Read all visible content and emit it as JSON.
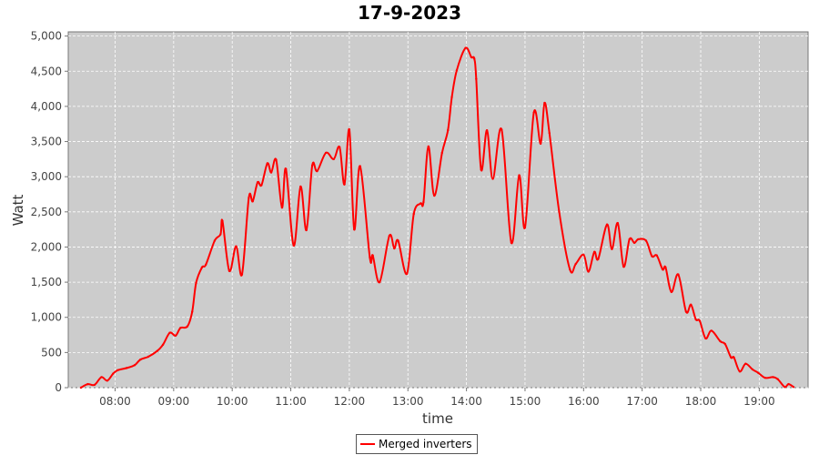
{
  "chart_data": {
    "type": "line",
    "title": "17-9-2023",
    "xlabel": "time",
    "ylabel": "Watt",
    "xlim": [
      "07:12",
      "19:50"
    ],
    "ylim": [
      0,
      5060
    ],
    "x_ticks": [
      "08:00",
      "09:00",
      "10:00",
      "11:00",
      "12:00",
      "13:00",
      "14:00",
      "15:00",
      "16:00",
      "17:00",
      "18:00",
      "19:00"
    ],
    "y_ticks": [
      "0",
      "500",
      "1,000",
      "1,500",
      "2,000",
      "2,500",
      "3,000",
      "3,500",
      "4,000",
      "4,500",
      "5,000"
    ],
    "grid": true,
    "background": "#cccccc",
    "legend_position": "bottom",
    "series": [
      {
        "name": "Merged inverters",
        "color": "#ff0000",
        "x": [
          "07:25",
          "07:32",
          "07:39",
          "07:46",
          "07:52",
          "07:58",
          "08:03",
          "08:12",
          "08:20",
          "08:26",
          "08:34",
          "08:43",
          "08:49",
          "08:56",
          "09:02",
          "09:07",
          "09:14",
          "09:19",
          "09:23",
          "09:29",
          "09:33",
          "09:42",
          "09:48",
          "09:50",
          "09:57",
          "10:04",
          "10:10",
          "10:17",
          "10:21",
          "10:26",
          "10:30",
          "10:36",
          "10:40",
          "10:45",
          "10:51",
          "10:55",
          "11:03",
          "11:10",
          "11:16",
          "11:22",
          "11:27",
          "11:36",
          "11:44",
          "11:50",
          "11:55",
          "12:00",
          "12:05",
          "12:11",
          "12:21",
          "12:24",
          "12:31",
          "12:41",
          "12:46",
          "12:50",
          "12:59",
          "13:06",
          "13:13",
          "13:16",
          "13:21",
          "13:27",
          "13:35",
          "13:41",
          "13:45",
          "13:50",
          "13:59",
          "14:05",
          "14:08",
          "14:10",
          "14:15",
          "14:21",
          "14:27",
          "14:36",
          "14:46",
          "14:54",
          "15:00",
          "15:09",
          "15:16",
          "15:20",
          "15:25",
          "15:35",
          "15:46",
          "15:52",
          "16:00",
          "16:05",
          "16:11",
          "16:15",
          "16:24",
          "16:29",
          "16:35",
          "16:41",
          "16:47",
          "16:52",
          "16:56",
          "17:04",
          "17:10",
          "17:15",
          "17:21",
          "17:24",
          "17:30",
          "17:37",
          "17:45",
          "17:50",
          "17:55",
          "17:59",
          "18:05",
          "18:11",
          "18:20",
          "18:25",
          "18:31",
          "18:34",
          "18:40",
          "18:46",
          "18:53",
          "18:59",
          "19:06",
          "19:14",
          "19:19",
          "19:26",
          "19:30",
          "19:35"
        ],
        "y": [
          0,
          50,
          40,
          150,
          100,
          200,
          250,
          280,
          320,
          400,
          440,
          520,
          610,
          780,
          740,
          850,
          870,
          1080,
          1490,
          1710,
          1750,
          2090,
          2180,
          2370,
          1660,
          2010,
          1610,
          2700,
          2650,
          2920,
          2880,
          3190,
          3060,
          3240,
          2560,
          3110,
          2020,
          2860,
          2240,
          3160,
          3080,
          3340,
          3250,
          3420,
          2890,
          3670,
          2250,
          3150,
          1850,
          1880,
          1500,
          2160,
          1980,
          2090,
          1620,
          2470,
          2620,
          2640,
          3430,
          2730,
          3340,
          3660,
          4130,
          4510,
          4830,
          4700,
          4680,
          4390,
          3100,
          3660,
          2970,
          3670,
          2060,
          3020,
          2280,
          3910,
          3470,
          4050,
          3620,
          2500,
          1680,
          1760,
          1890,
          1650,
          1930,
          1830,
          2320,
          1970,
          2340,
          1720,
          2110,
          2060,
          2110,
          2090,
          1870,
          1880,
          1680,
          1710,
          1360,
          1610,
          1080,
          1180,
          970,
          950,
          700,
          810,
          660,
          620,
          430,
          430,
          230,
          340,
          260,
          210,
          140,
          150,
          120,
          10,
          50,
          10
        ]
      }
    ]
  }
}
